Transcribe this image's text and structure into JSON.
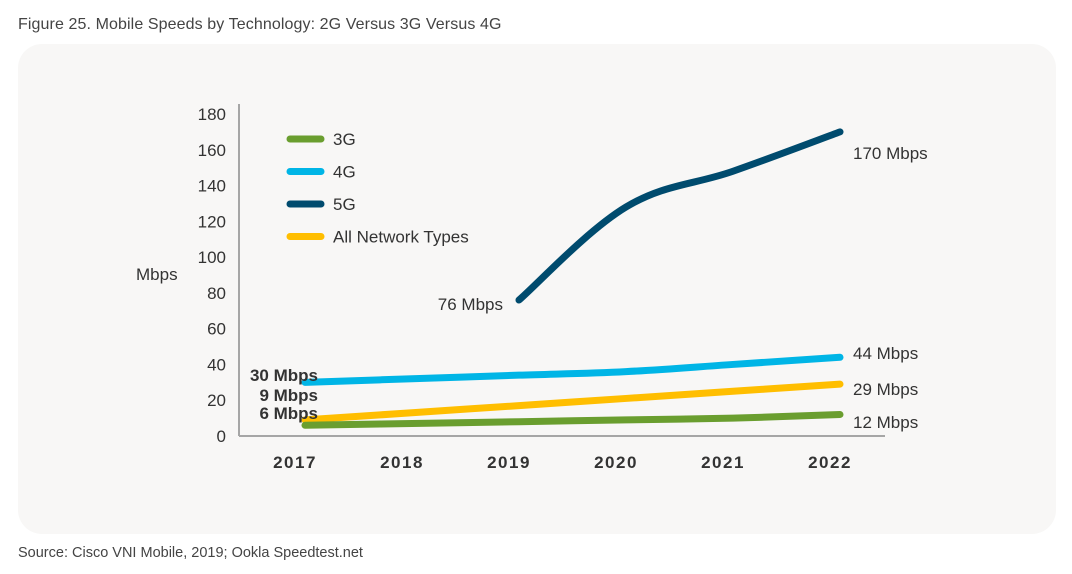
{
  "figure": {
    "title": "Figure 25.  Mobile Speeds by Technology: 2G Versus 3G Versus 4G",
    "source": "Source: Cisco VNI Mobile, 2019; Ookla Speedtest.net"
  },
  "chart_data": {
    "type": "line",
    "title": "Mobile Speeds by Technology: 2G Versus 3G Versus 4G",
    "xlabel": "",
    "ylabel": "Mbps",
    "x": [
      "2017",
      "2018",
      "2019",
      "2020",
      "2021",
      "2022"
    ],
    "ylim": [
      0,
      180
    ],
    "yticks": [
      "0",
      "20",
      "40",
      "60",
      "80",
      "100",
      "120",
      "140",
      "160",
      "180"
    ],
    "grid": false,
    "legend_position": "top-left",
    "series": [
      {
        "name": "3G",
        "color": "#6a9e2f",
        "values": [
          6,
          7,
          8,
          9,
          10,
          12
        ],
        "labels": [
          {
            "x": "2017",
            "text": "6 Mbps",
            "bold": true
          },
          {
            "x": "2022",
            "text": "12 Mbps",
            "bold": false
          }
        ]
      },
      {
        "name": "4G",
        "color": "#00b5e6",
        "values": [
          30,
          32,
          34,
          36,
          40,
          44
        ],
        "labels": [
          {
            "x": "2017",
            "text": "30 Mbps",
            "bold": true
          },
          {
            "x": "2022",
            "text": "44 Mbps",
            "bold": false
          }
        ]
      },
      {
        "name": "5G",
        "color": "#004b6e",
        "values": [
          null,
          null,
          76,
          128,
          148,
          170
        ],
        "labels": [
          {
            "x": "2019",
            "text": "76 Mbps",
            "bold": false
          },
          {
            "x": "2022",
            "text": "170 Mbps",
            "bold": false
          }
        ]
      },
      {
        "name": "All Network Types",
        "color": "#ffbe00",
        "values": [
          9,
          13,
          17,
          21,
          25,
          29
        ],
        "labels": [
          {
            "x": "2017",
            "text": "9 Mbps",
            "bold": true
          },
          {
            "x": "2022",
            "text": "29 Mbps",
            "bold": false
          }
        ]
      }
    ]
  }
}
